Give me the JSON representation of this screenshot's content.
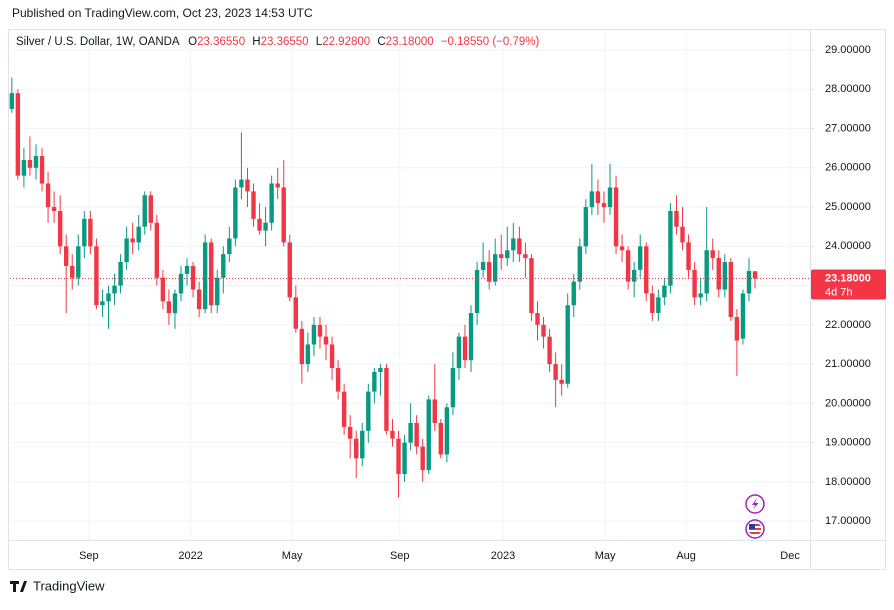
{
  "published": "Published on TradingView.com, Oct 23, 2023 14:53 UTC",
  "brand": "TradingView",
  "chart_data": {
    "type": "candlestick",
    "symbol": "Silver / U.S. Dollar, 1W, OANDA",
    "legend": {
      "o_label": "O",
      "o": "23.36550",
      "h_label": "H",
      "h": "23.36550",
      "l_label": "L",
      "l": "22.92800",
      "c_label": "C",
      "c": "23.18000",
      "change": "−0.18550 (−0.79%)"
    },
    "up_color": "#089981",
    "down_color": "#f23645",
    "last_price": {
      "value": 23.18,
      "label": "23.18000",
      "countdown": "4d 7h"
    },
    "xlim": [
      -0.3,
      132.1
    ],
    "xticks": [
      {
        "value": 12.75,
        "label": "Sep"
      },
      {
        "value": 29.6,
        "label": "2022"
      },
      {
        "value": 46.4,
        "label": "May"
      },
      {
        "value": 64.2,
        "label": "Sep"
      },
      {
        "value": 81.3,
        "label": "2023"
      },
      {
        "value": 98.2,
        "label": "May"
      },
      {
        "value": 111.6,
        "label": "Aug"
      },
      {
        "value": 128.8,
        "label": "Dec"
      }
    ],
    "ylim": [
      16.52,
      29.51
    ],
    "yticks": [
      {
        "value": 17,
        "label": "17.00000"
      },
      {
        "value": 18,
        "label": "18.00000"
      },
      {
        "value": 19,
        "label": "19.00000"
      },
      {
        "value": 20,
        "label": "20.00000"
      },
      {
        "value": 21,
        "label": "21.00000"
      },
      {
        "value": 22,
        "label": "22.00000"
      },
      {
        "value": 23,
        "label": "23.00000"
      },
      {
        "value": 24,
        "label": "24.00000"
      },
      {
        "value": 25,
        "label": "25.00000"
      },
      {
        "value": 26,
        "label": "26.00000"
      },
      {
        "value": 27,
        "label": "27.00000"
      },
      {
        "value": 28,
        "label": "28.00000"
      },
      {
        "value": 29,
        "label": "29.00000"
      }
    ],
    "grid": true,
    "ohlc": [
      [
        27.5,
        28.3,
        27.4,
        27.9
      ],
      [
        27.9,
        28.0,
        25.7,
        25.8
      ],
      [
        25.8,
        26.5,
        25.5,
        26.2
      ],
      [
        26.2,
        26.8,
        25.8,
        26.0
      ],
      [
        26.0,
        26.6,
        25.7,
        26.3
      ],
      [
        26.3,
        26.5,
        25.4,
        25.6
      ],
      [
        25.6,
        25.9,
        24.6,
        25.0
      ],
      [
        25.0,
        25.4,
        24.6,
        24.9
      ],
      [
        24.9,
        25.3,
        23.8,
        24.0
      ],
      [
        24.0,
        24.3,
        22.3,
        23.5
      ],
      [
        23.5,
        23.8,
        22.9,
        23.2
      ],
      [
        23.2,
        24.3,
        23.0,
        24.0
      ],
      [
        24.0,
        24.9,
        23.7,
        24.7
      ],
      [
        24.7,
        24.9,
        23.8,
        24.0
      ],
      [
        24.0,
        24.2,
        22.4,
        22.5
      ],
      [
        22.5,
        22.9,
        22.2,
        22.6
      ],
      [
        22.6,
        23.0,
        21.9,
        22.8
      ],
      [
        22.8,
        23.3,
        22.5,
        23.0
      ],
      [
        23.0,
        23.8,
        22.8,
        23.6
      ],
      [
        23.6,
        24.5,
        23.4,
        24.2
      ],
      [
        24.2,
        24.6,
        23.8,
        24.1
      ],
      [
        24.1,
        24.8,
        23.9,
        24.5
      ],
      [
        24.5,
        25.4,
        24.3,
        25.3
      ],
      [
        25.3,
        25.4,
        24.4,
        24.6
      ],
      [
        24.6,
        24.8,
        23.0,
        23.2
      ],
      [
        23.2,
        23.4,
        22.4,
        22.6
      ],
      [
        22.6,
        22.9,
        22.0,
        22.3
      ],
      [
        22.3,
        22.9,
        21.9,
        22.8
      ],
      [
        22.8,
        23.5,
        22.6,
        23.3
      ],
      [
        23.3,
        23.7,
        23.0,
        23.5
      ],
      [
        23.5,
        23.6,
        22.7,
        22.9
      ],
      [
        22.9,
        23.1,
        22.2,
        22.4
      ],
      [
        22.4,
        24.3,
        22.3,
        24.1
      ],
      [
        24.1,
        24.2,
        22.3,
        22.5
      ],
      [
        22.5,
        23.4,
        22.3,
        23.2
      ],
      [
        23.2,
        24.0,
        22.8,
        23.8
      ],
      [
        23.8,
        24.5,
        23.6,
        24.2
      ],
      [
        24.2,
        25.7,
        24.0,
        25.5
      ],
      [
        25.5,
        26.9,
        25.2,
        25.7
      ],
      [
        25.7,
        26.0,
        25.0,
        25.4
      ],
      [
        25.4,
        25.6,
        24.5,
        24.7
      ],
      [
        24.7,
        25.1,
        24.3,
        24.4
      ],
      [
        24.4,
        25.0,
        24.0,
        24.6
      ],
      [
        24.6,
        25.8,
        24.4,
        25.6
      ],
      [
        25.6,
        26.0,
        25.2,
        25.5
      ],
      [
        25.5,
        26.2,
        24.0,
        24.1
      ],
      [
        24.1,
        24.3,
        22.6,
        22.7
      ],
      [
        22.7,
        23.0,
        21.8,
        21.9
      ],
      [
        21.9,
        22.1,
        20.5,
        21.0
      ],
      [
        21.0,
        21.8,
        20.8,
        21.5
      ],
      [
        21.5,
        22.2,
        21.2,
        22.0
      ],
      [
        22.0,
        22.2,
        21.4,
        21.7
      ],
      [
        21.7,
        22.0,
        21.1,
        21.5
      ],
      [
        21.5,
        21.7,
        20.6,
        20.9
      ],
      [
        20.9,
        21.1,
        20.1,
        20.3
      ],
      [
        20.3,
        20.5,
        19.2,
        19.4
      ],
      [
        19.4,
        19.7,
        18.6,
        19.1
      ],
      [
        19.1,
        19.3,
        18.1,
        18.6
      ],
      [
        18.6,
        19.5,
        18.4,
        19.3
      ],
      [
        19.3,
        20.5,
        19.0,
        20.3
      ],
      [
        20.3,
        20.9,
        20.0,
        20.8
      ],
      [
        20.8,
        21.0,
        20.2,
        20.9
      ],
      [
        20.9,
        21.0,
        19.2,
        19.3
      ],
      [
        19.3,
        19.6,
        18.9,
        19.1
      ],
      [
        19.1,
        19.3,
        17.6,
        18.2
      ],
      [
        18.2,
        19.2,
        18.0,
        19.0
      ],
      [
        19.0,
        20.0,
        18.8,
        19.5
      ],
      [
        19.5,
        19.7,
        18.7,
        18.9
      ],
      [
        18.9,
        19.1,
        18.0,
        18.3
      ],
      [
        18.3,
        20.2,
        18.2,
        20.1
      ],
      [
        20.1,
        21.0,
        19.3,
        19.5
      ],
      [
        19.5,
        19.6,
        18.6,
        18.7
      ],
      [
        18.7,
        20.0,
        18.5,
        19.9
      ],
      [
        19.9,
        21.3,
        19.7,
        20.9
      ],
      [
        20.9,
        21.8,
        20.6,
        21.7
      ],
      [
        21.7,
        22.0,
        20.9,
        21.1
      ],
      [
        21.1,
        22.5,
        20.8,
        22.3
      ],
      [
        22.3,
        23.6,
        22.0,
        23.4
      ],
      [
        23.4,
        24.1,
        23.2,
        23.6
      ],
      [
        23.6,
        23.9,
        22.9,
        23.1
      ],
      [
        23.1,
        24.2,
        23.0,
        23.8
      ],
      [
        23.8,
        24.3,
        23.4,
        23.7
      ],
      [
        23.7,
        24.5,
        23.5,
        23.9
      ],
      [
        23.9,
        24.6,
        23.6,
        24.2
      ],
      [
        24.2,
        24.5,
        23.6,
        23.8
      ],
      [
        23.8,
        24.1,
        23.2,
        23.7
      ],
      [
        23.7,
        23.8,
        22.1,
        22.3
      ],
      [
        22.3,
        22.6,
        21.6,
        22.0
      ],
      [
        22.0,
        22.2,
        21.4,
        21.7
      ],
      [
        21.7,
        21.9,
        20.8,
        21.0
      ],
      [
        21.0,
        21.3,
        19.9,
        20.6
      ],
      [
        20.6,
        21.0,
        20.2,
        20.5
      ],
      [
        20.5,
        22.8,
        20.4,
        22.5
      ],
      [
        22.5,
        23.3,
        22.2,
        23.1
      ],
      [
        23.1,
        24.2,
        22.9,
        24.0
      ],
      [
        24.0,
        25.2,
        23.8,
        25.0
      ],
      [
        25.0,
        26.1,
        24.8,
        25.4
      ],
      [
        25.4,
        25.7,
        24.8,
        25.1
      ],
      [
        25.1,
        25.4,
        24.6,
        25.0
      ],
      [
        25.0,
        26.1,
        24.8,
        25.5
      ],
      [
        25.5,
        25.8,
        23.8,
        24.0
      ],
      [
        24.0,
        24.3,
        23.6,
        23.9
      ],
      [
        23.9,
        24.0,
        22.9,
        23.1
      ],
      [
        23.1,
        23.6,
        22.7,
        23.4
      ],
      [
        23.4,
        24.3,
        23.2,
        24.0
      ],
      [
        24.0,
        24.1,
        22.6,
        22.8
      ],
      [
        22.8,
        23.0,
        22.1,
        22.3
      ],
      [
        22.3,
        22.9,
        22.1,
        22.7
      ],
      [
        22.7,
        23.2,
        22.5,
        23.0
      ],
      [
        23.0,
        25.1,
        22.8,
        24.9
      ],
      [
        24.9,
        25.3,
        24.3,
        24.5
      ],
      [
        24.5,
        25.0,
        23.9,
        24.1
      ],
      [
        24.1,
        24.3,
        23.2,
        23.4
      ],
      [
        23.4,
        23.6,
        22.5,
        22.7
      ],
      [
        22.7,
        23.2,
        22.5,
        22.8
      ],
      [
        22.8,
        25.0,
        22.6,
        23.9
      ],
      [
        23.9,
        24.2,
        23.4,
        23.7
      ],
      [
        23.7,
        23.9,
        22.7,
        22.9
      ],
      [
        22.9,
        23.8,
        22.7,
        23.6
      ],
      [
        23.6,
        23.7,
        22.1,
        22.2
      ],
      [
        22.2,
        22.4,
        20.7,
        21.6
      ],
      [
        21.65,
        22.9,
        21.5,
        22.8
      ],
      [
        22.8,
        23.7,
        22.6,
        23.37
      ],
      [
        23.3655,
        23.3655,
        22.928,
        23.18
      ]
    ]
  }
}
